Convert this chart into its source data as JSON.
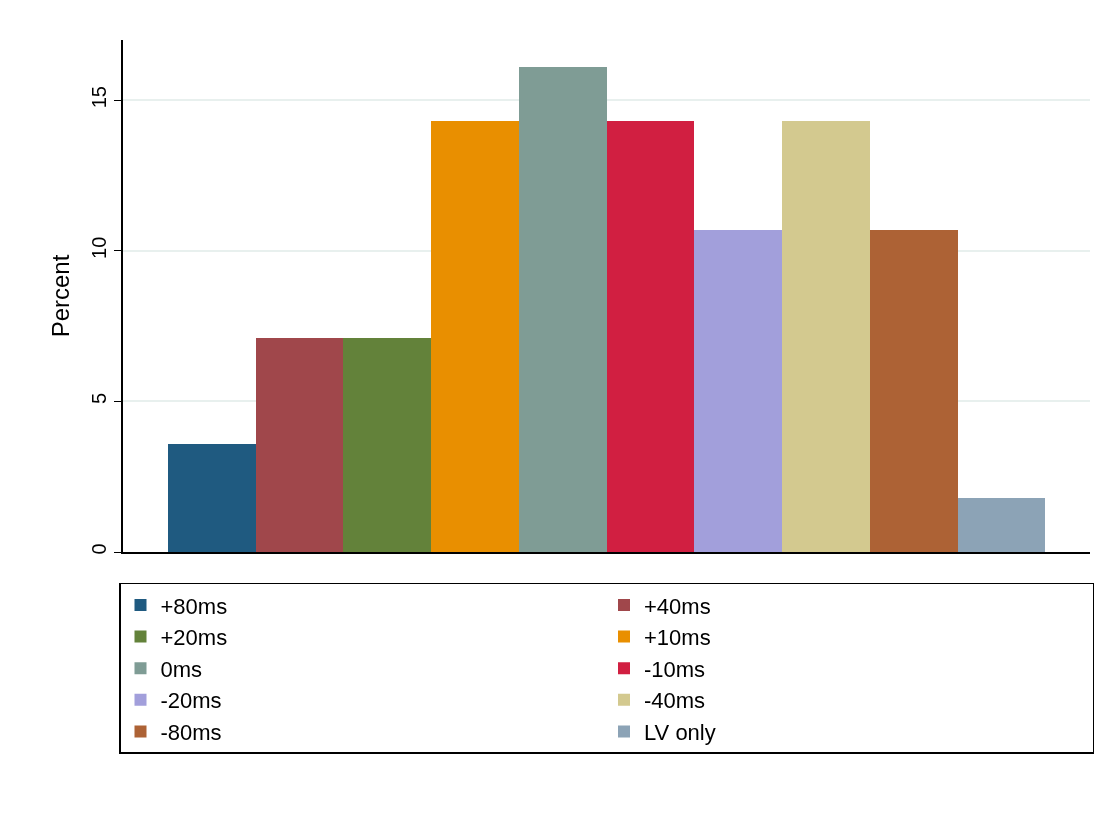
{
  "chart_data": {
    "type": "bar",
    "ylabel": "Percent",
    "categories": [
      null,
      null,
      null,
      null,
      null,
      null,
      null,
      null,
      null,
      null
    ],
    "series": [
      {
        "name": "+80ms",
        "color": "#1f5a80",
        "values": [
          3.6,
          null,
          null,
          null,
          null,
          null,
          null,
          null,
          null,
          null
        ]
      },
      {
        "name": "+40ms",
        "color": "#a0474b",
        "values": [
          null,
          7.1,
          null,
          null,
          null,
          null,
          null,
          null,
          null,
          null
        ]
      },
      {
        "name": "+20ms",
        "color": "#63823a",
        "values": [
          null,
          null,
          7.1,
          null,
          null,
          null,
          null,
          null,
          null,
          null
        ]
      },
      {
        "name": "+10ms",
        "color": "#e98f00",
        "values": [
          null,
          null,
          null,
          14.3,
          null,
          null,
          null,
          null,
          null,
          null
        ]
      },
      {
        "name": "0ms",
        "color": "#7f9c95",
        "values": [
          null,
          null,
          null,
          null,
          16.1,
          null,
          null,
          null,
          null,
          null
        ]
      },
      {
        "name": "-10ms",
        "color": "#d11f41",
        "values": [
          null,
          null,
          null,
          null,
          null,
          14.3,
          null,
          null,
          null,
          null
        ]
      },
      {
        "name": "-20ms",
        "color": "#a29fdb",
        "values": [
          null,
          null,
          null,
          null,
          null,
          null,
          10.7,
          null,
          null,
          null
        ]
      },
      {
        "name": "-40ms",
        "color": "#d3c98f",
        "values": [
          null,
          null,
          null,
          null,
          null,
          null,
          null,
          14.3,
          null,
          null
        ]
      },
      {
        "name": "-80ms",
        "color": "#ad6235",
        "values": [
          null,
          null,
          null,
          null,
          null,
          null,
          null,
          null,
          10.7,
          null
        ]
      },
      {
        "name": "LV only",
        "color": "#8ca3b6",
        "values": [
          null,
          null,
          null,
          null,
          null,
          null,
          null,
          null,
          null,
          1.8
        ]
      }
    ],
    "ylim": [
      0,
      17
    ],
    "yticks": [
      0,
      5,
      10,
      15
    ],
    "grid": "y",
    "legend": "bottom",
    "tick_labels": "y"
  }
}
